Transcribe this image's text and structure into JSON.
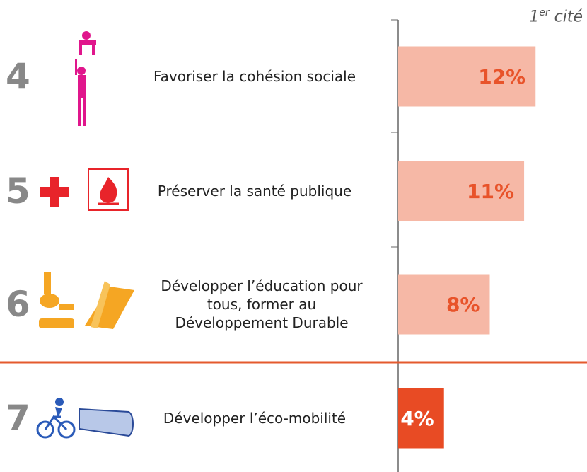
{
  "chart_data": {
    "type": "bar",
    "orientation": "horizontal",
    "column_header": {
      "main": "1",
      "sup": "er",
      "rest": " cité"
    },
    "ranks": [
      "4",
      "5",
      "6",
      "7"
    ],
    "categories": [
      "Favoriser la cohésion sociale",
      "Préserver la santé publique",
      "Développer l’éducation pour\ntous, former au\nDéveloppement Durable",
      "Développer l’éco-mobilité"
    ],
    "values": [
      12,
      11,
      8,
      4
    ],
    "value_labels": [
      "12%",
      "11%",
      "8%",
      "4%"
    ],
    "colors": [
      "#f6b8a6",
      "#f6b8a6",
      "#f6b8a6",
      "#e84b24"
    ],
    "label_colors": [
      "#e8532a",
      "#e8532a",
      "#e8532a",
      "#ffffff"
    ],
    "xlim": [
      0,
      16
    ]
  }
}
